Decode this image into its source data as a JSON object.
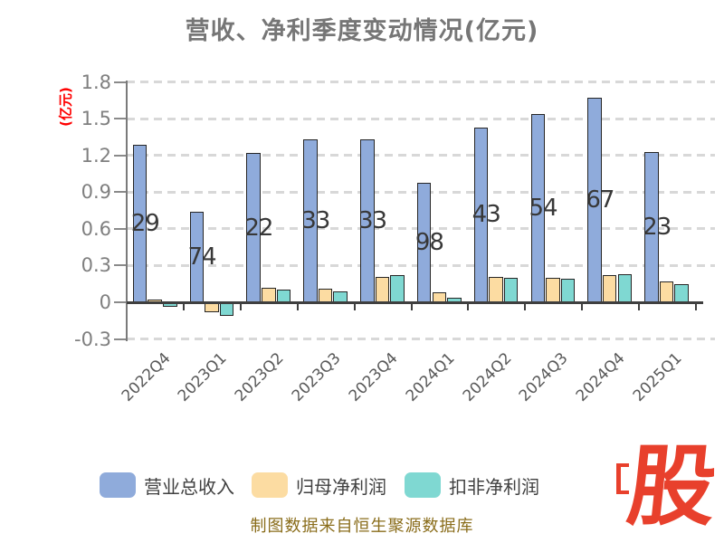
{
  "title": "营收、净利季度变动情况(亿元)",
  "y_axis": {
    "unit_label": "(亿元)",
    "unit_label_color": "#ff0000",
    "ticks": [
      1.8,
      1.5,
      1.2,
      0.9,
      0.6,
      0.3,
      0,
      -0.3
    ],
    "tick_labels": [
      "1.8",
      "1.5",
      "1.2",
      "0.9",
      "0.6",
      "0.3",
      "0",
      "-0.3"
    ]
  },
  "chart_data": {
    "type": "bar",
    "title": "营收、净利季度变动情况(亿元)",
    "categories": [
      "2022Q4",
      "2023Q1",
      "2023Q2",
      "2023Q3",
      "2023Q4",
      "2024Q1",
      "2024Q2",
      "2024Q3",
      "2024Q4",
      "2025Q1"
    ],
    "series": [
      {
        "name": "营业总收入",
        "color": "#8FABDB",
        "values": [
          1.29,
          0.74,
          1.22,
          1.33,
          1.33,
          0.98,
          1.43,
          1.54,
          1.67,
          1.23
        ],
        "bar_labels": [
          "29",
          "74",
          "22",
          "33",
          "33",
          "98",
          "43",
          "54",
          "67",
          "23"
        ]
      },
      {
        "name": "归母净利润",
        "color": "#FCDCA2",
        "values": [
          0.02,
          -0.08,
          0.12,
          0.11,
          0.21,
          0.08,
          0.21,
          0.2,
          0.22,
          0.17
        ]
      },
      {
        "name": "扣非净利润",
        "color": "#7FD8D2",
        "values": [
          -0.04,
          -0.11,
          0.1,
          0.09,
          0.22,
          0.04,
          0.2,
          0.19,
          0.23,
          0.15
        ]
      }
    ],
    "ylabel": "(亿元)",
    "ylim": [
      -0.3,
      1.8
    ],
    "grid": "dashed-horizontal",
    "legend_position": "bottom"
  },
  "legend": {
    "items": [
      {
        "label": "营业总收入",
        "color": "#8FABDB"
      },
      {
        "label": "归母净利润",
        "color": "#FCDCA2"
      },
      {
        "label": "扣非净利润",
        "color": "#7FD8D2"
      }
    ]
  },
  "footer": {
    "text": "制图数据来自恒生聚源数据库"
  },
  "logo": {
    "text": "股",
    "color": "#E8402C"
  }
}
